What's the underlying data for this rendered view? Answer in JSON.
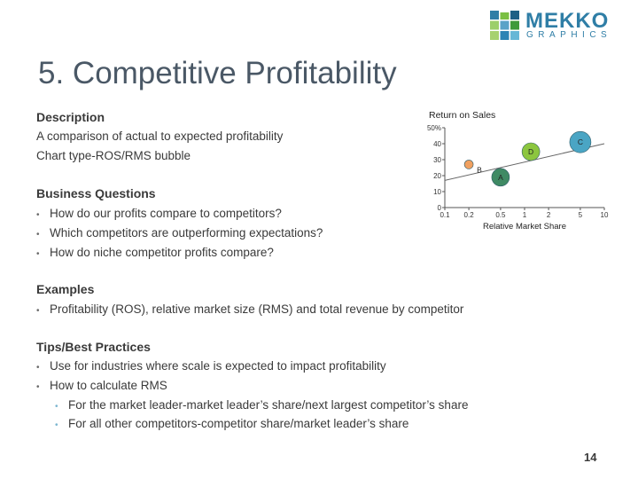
{
  "logo": {
    "word": "MEKKO",
    "sub": "GRAPHICS",
    "colors": [
      "#2f7ea6",
      "#7bc043",
      "#1e5f85",
      "#9ccf6a",
      "#5aa2c8",
      "#3f9a3a",
      "#a6d16f",
      "#2d84b4",
      "#67b7d6"
    ]
  },
  "title": "5. Competitive Profitability",
  "description": {
    "heading": "Description",
    "lines": [
      "A comparison of actual to expected profitability",
      "Chart type-ROS/RMS bubble"
    ]
  },
  "business_questions": {
    "heading": "Business Questions",
    "items": [
      "How do our profits compare to competitors?",
      "Which competitors are outperforming expectations?",
      "How do niche competitor profits compare?"
    ]
  },
  "examples": {
    "heading": "Examples",
    "items": [
      "Profitability (ROS), relative market size (RMS) and total revenue by competitor"
    ]
  },
  "tips": {
    "heading": "Tips/Best Practices",
    "items": [
      "Use for industries where scale is expected to impact profitability",
      "How to calculate RMS"
    ],
    "subitems": [
      "For the market leader-market leader’s share/next largest competitor’s share",
      "For all other competitors-competitor share/market leader’s share"
    ]
  },
  "page_number": "14",
  "chart_data": {
    "type": "scatter",
    "title": "Return on Sales",
    "xlabel": "Relative Market Share",
    "ylabel": "",
    "x_ticks": [
      "0.1",
      "0.2",
      "0.5",
      "1",
      "2",
      "5",
      "10"
    ],
    "x_tick_values": [
      0.1,
      0.2,
      0.5,
      1,
      2,
      5,
      10
    ],
    "x_scale": "log",
    "y_ticks": [
      "0",
      "10",
      "20",
      "30",
      "40",
      "50%"
    ],
    "ylim": [
      0,
      50
    ],
    "xlim": [
      0.1,
      10
    ],
    "trend_line": {
      "x": [
        0.1,
        10
      ],
      "y": [
        17,
        40
      ]
    },
    "points": [
      {
        "label": "A",
        "x": 0.5,
        "y": 19,
        "size": 10,
        "color": "#3f8a64"
      },
      {
        "label": "B",
        "x": 0.2,
        "y": 27,
        "size": 5,
        "color": "#f0a060"
      },
      {
        "label": "C",
        "x": 5,
        "y": 41,
        "size": 12,
        "color": "#4aa5c4"
      },
      {
        "label": "D",
        "x": 1.2,
        "y": 35,
        "size": 10,
        "color": "#8cc63f"
      }
    ]
  }
}
